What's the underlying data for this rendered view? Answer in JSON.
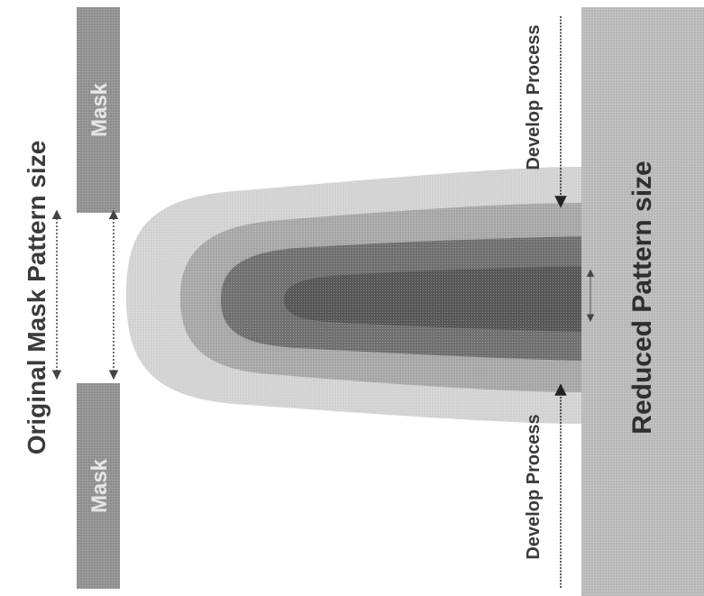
{
  "diagram": {
    "title": "Original Mask Pattern size",
    "mask_top_label": "Mask",
    "mask_bottom_label": "Mask",
    "develop_process_top": "Develop Process",
    "develop_process_bottom": "Develop Process",
    "reduced_label": "Reduced Pattern size"
  },
  "colors": {
    "mask_fill": "#8f8f8f",
    "substrate_fill": "#b9b9b9",
    "plume_outer": "#d2d2d2",
    "plume_mid": "#a6a6a6",
    "plume_inner": "#6e6e6e",
    "plume_core": "#555555",
    "text": "#3a3a3a",
    "arrow": "#444444"
  }
}
